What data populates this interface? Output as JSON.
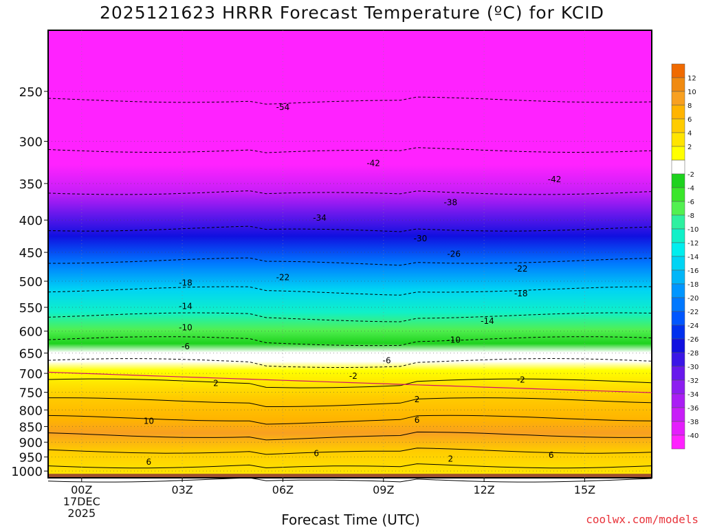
{
  "chart_data": {
    "type": "heatmap",
    "title": "2025121623 HRRR Forecast Temperature (ºC) for KCID",
    "xlabel": "Forecast Time (UTC)",
    "ylabel": "",
    "credit": "coolwx.com/models",
    "x_ticks": [
      {
        "label": "00Z",
        "hour": 0,
        "sub": [
          "17DEC",
          "2025"
        ]
      },
      {
        "label": "03Z",
        "hour": 3
      },
      {
        "label": "06Z",
        "hour": 6
      },
      {
        "label": "09Z",
        "hour": 9
      },
      {
        "label": "12Z",
        "hour": 12
      },
      {
        "label": "15Z",
        "hour": 15
      }
    ],
    "xlim": [
      -1,
      17
    ],
    "y_ticks": [
      250,
      300,
      350,
      400,
      450,
      500,
      550,
      600,
      650,
      700,
      750,
      800,
      850,
      900,
      950,
      1000
    ],
    "ylim": [
      1025,
      200
    ],
    "y_scale": "log",
    "ground_level": 1000,
    "colorbar": {
      "unit": "ºC",
      "levels": [
        {
          "label": "",
          "color": "#f06a00"
        },
        {
          "label": "12",
          "color": "#f08a10"
        },
        {
          "label": "10",
          "color": "#f8a020"
        },
        {
          "label": "8",
          "color": "#ffb400"
        },
        {
          "label": "6",
          "color": "#ffcc00"
        },
        {
          "label": "4",
          "color": "#ffe400"
        },
        {
          "label": "2",
          "color": "#ffff00"
        },
        {
          "label": "",
          "color": "#ffffff"
        },
        {
          "label": "-2",
          "color": "#1ed21e"
        },
        {
          "label": "-4",
          "color": "#3ae62a"
        },
        {
          "label": "-6",
          "color": "#52f050"
        },
        {
          "label": "-8",
          "color": "#2ef0a0"
        },
        {
          "label": "-10",
          "color": "#10f0c8"
        },
        {
          "label": "-12",
          "color": "#00eeee"
        },
        {
          "label": "-14",
          "color": "#00d4f4"
        },
        {
          "label": "-16",
          "color": "#00b6f8"
        },
        {
          "label": "-18",
          "color": "#0096ff"
        },
        {
          "label": "-20",
          "color": "#0078ff"
        },
        {
          "label": "-22",
          "color": "#0056ff"
        },
        {
          "label": "-24",
          "color": "#0030ee"
        },
        {
          "label": "-26",
          "color": "#1010e0"
        },
        {
          "label": "-28",
          "color": "#3a16e6"
        },
        {
          "label": "-30",
          "color": "#6818ec"
        },
        {
          "label": "-32",
          "color": "#8c1ef0"
        },
        {
          "label": "-34",
          "color": "#aa1ef4"
        },
        {
          "label": "-36",
          "color": "#c81ef8"
        },
        {
          "label": "-38",
          "color": "#e41efc"
        },
        {
          "label": "-40",
          "color": "#ff22ff"
        }
      ]
    },
    "temperature_profile": [
      {
        "p": 250,
        "t": -55
      },
      {
        "p": 300,
        "t": -46
      },
      {
        "p": 350,
        "t": -40
      },
      {
        "p": 400,
        "t": -32
      },
      {
        "p": 450,
        "t": -26
      },
      {
        "p": 500,
        "t": -21
      },
      {
        "p": 550,
        "t": -15
      },
      {
        "p": 600,
        "t": -10
      },
      {
        "p": 650,
        "t": -5
      },
      {
        "p": 700,
        "t": 1
      },
      {
        "p": 750,
        "t": 3
      },
      {
        "p": 800,
        "t": 5
      },
      {
        "p": 850,
        "t": 9
      },
      {
        "p": 900,
        "t": 10
      },
      {
        "p": 950,
        "t": 6
      },
      {
        "p": 1000,
        "t": 4
      }
    ],
    "contour_labels": [
      {
        "text": "-54",
        "hour": 6.0,
        "p": 265
      },
      {
        "text": "-42",
        "hour": 8.7,
        "p": 325
      },
      {
        "text": "-42",
        "hour": 14.1,
        "p": 345
      },
      {
        "text": "-38",
        "hour": 11.0,
        "p": 375
      },
      {
        "text": "-34",
        "hour": 7.1,
        "p": 397
      },
      {
        "text": "-30",
        "hour": 10.1,
        "p": 428
      },
      {
        "text": "-26",
        "hour": 11.1,
        "p": 453
      },
      {
        "text": "-22",
        "hour": 6.0,
        "p": 493
      },
      {
        "text": "-22",
        "hour": 13.1,
        "p": 478
      },
      {
        "text": "-18",
        "hour": 3.1,
        "p": 503
      },
      {
        "text": "-18",
        "hour": 13.1,
        "p": 523
      },
      {
        "text": "-14",
        "hour": 3.1,
        "p": 548
      },
      {
        "text": "-14",
        "hour": 12.1,
        "p": 578
      },
      {
        "text": "-10",
        "hour": 3.1,
        "p": 592
      },
      {
        "text": "-10",
        "hour": 11.1,
        "p": 620
      },
      {
        "text": "-6",
        "hour": 3.1,
        "p": 635
      },
      {
        "text": "-6",
        "hour": 9.1,
        "p": 668
      },
      {
        "text": "-2",
        "hour": 8.1,
        "p": 707
      },
      {
        "text": "-2",
        "hour": 13.1,
        "p": 717
      },
      {
        "text": "2",
        "hour": 4.0,
        "p": 726
      },
      {
        "text": "2",
        "hour": 10.0,
        "p": 770
      },
      {
        "text": "2",
        "hour": 11.0,
        "p": 957
      },
      {
        "text": "6",
        "hour": 10.0,
        "p": 830
      },
      {
        "text": "6",
        "hour": 7.0,
        "p": 938
      },
      {
        "text": "6",
        "hour": 14.0,
        "p": 944
      },
      {
        "text": "6",
        "hour": 2.0,
        "p": 968
      },
      {
        "text": "10",
        "hour": 2.0,
        "p": 833
      }
    ]
  }
}
